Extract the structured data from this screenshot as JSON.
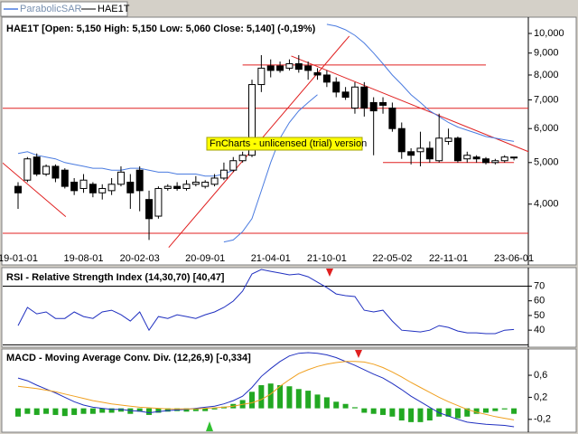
{
  "chart_data": [
    {
      "type": "candlestick",
      "name": "HAE1T",
      "title": "HAE1T [Open: 5,150  High: 5,150  Low: 5,060  Close: 5,140] (-0,19%)",
      "annotation": "FnCharts - unlicensed (trial) version",
      "categories": [
        "19-01-01",
        null,
        null,
        null,
        null,
        null,
        null,
        "19-08-01",
        null,
        null,
        null,
        null,
        null,
        "20-02-03",
        null,
        null,
        null,
        null,
        null,
        null,
        "20-09-01",
        null,
        null,
        null,
        null,
        null,
        null,
        "21-04-01",
        null,
        null,
        null,
        null,
        null,
        "21-10-01",
        null,
        null,
        null,
        null,
        null,
        null,
        "22-05-02",
        null,
        null,
        null,
        null,
        null,
        "22-11-01",
        null,
        null,
        null,
        null,
        null,
        null,
        "23-06-01"
      ],
      "open": [
        4400,
        4550,
        5150,
        4700,
        4900,
        4800,
        4500,
        4350,
        4450,
        4250,
        4300,
        4450,
        4500,
        4800,
        4100,
        3750,
        4350,
        4400,
        4350,
        4450,
        4400,
        4450,
        4600,
        4800,
        5050,
        5200,
        7600,
        8400,
        8400,
        8300,
        8500,
        8400,
        8100,
        8000,
        7700,
        7300,
        6700,
        7500,
        6900,
        6900,
        6700,
        6000,
        5300,
        5300,
        5400,
        5050,
        5600,
        5700,
        5100,
        5150,
        5100,
        5000,
        5050,
        5150
      ],
      "high": [
        4500,
        5150,
        5250,
        4950,
        4950,
        4850,
        4600,
        4700,
        4500,
        4450,
        4600,
        4900,
        4700,
        4900,
        4300,
        4400,
        4450,
        4500,
        4550,
        4650,
        4550,
        4700,
        5000,
        5150,
        5300,
        7800,
        8900,
        8700,
        8600,
        8700,
        8900,
        8600,
        8300,
        8200,
        7900,
        7500,
        7700,
        7700,
        7100,
        7100,
        6900,
        6200,
        5400,
        5900,
        5600,
        6500,
        6000,
        5750,
        5300,
        5200,
        5150,
        5100,
        5200,
        5150
      ],
      "low": [
        3900,
        4500,
        4650,
        4650,
        4500,
        4350,
        4200,
        4250,
        4150,
        4100,
        4200,
        4400,
        3900,
        3850,
        3300,
        3700,
        4300,
        4300,
        4300,
        4400,
        4350,
        4400,
        4550,
        4750,
        5000,
        5150,
        7300,
        7900,
        8100,
        8200,
        8100,
        7800,
        7800,
        7500,
        7100,
        7000,
        6500,
        6400,
        5200,
        6500,
        5900,
        5100,
        4950,
        4900,
        5000,
        5000,
        5500,
        5000,
        5000,
        5000,
        4950,
        4950,
        5000,
        5060
      ],
      "close": [
        4250,
        5100,
        4700,
        4900,
        4600,
        4400,
        4300,
        4550,
        4250,
        4350,
        4450,
        4750,
        4250,
        4300,
        3700,
        4350,
        4400,
        4350,
        4450,
        4500,
        4500,
        4600,
        4800,
        5050,
        5200,
        7600,
        8300,
        8200,
        8200,
        8500,
        8250,
        8200,
        8000,
        7700,
        7300,
        7100,
        7500,
        6700,
        6600,
        6800,
        6000,
        5300,
        5200,
        5400,
        5100,
        5700,
        5700,
        5050,
        5200,
        5100,
        5000,
        5050,
        5150,
        5140
      ],
      "overlay": {
        "name": "ParabolicSAR",
        "color": "#4a7be0",
        "upper": [
          5250,
          5300,
          5200,
          5150,
          5100,
          5000,
          4950,
          4900,
          4850,
          4850,
          4800,
          4800,
          4850,
          4850,
          4800,
          4750,
          4750,
          4700,
          4700,
          4700,
          4650,
          4650,
          4700,
          4800,
          null,
          null,
          null,
          null,
          null,
          null,
          null,
          null,
          null,
          10500,
          10400,
          10200,
          9900,
          9500,
          9000,
          8500,
          8000,
          7600,
          7200,
          6900,
          6600,
          6400,
          6200,
          6050,
          5950,
          5850,
          5750,
          5700,
          5650,
          5600
        ],
        "lower": [
          null,
          null,
          null,
          null,
          null,
          null,
          null,
          null,
          null,
          null,
          null,
          null,
          null,
          null,
          null,
          null,
          null,
          null,
          null,
          null,
          null,
          null,
          3265,
          3300,
          3450,
          3700,
          4300,
          5000,
          5700,
          6200,
          6600,
          6900,
          7200,
          null,
          null,
          null,
          null,
          null,
          null,
          null,
          null,
          null,
          null,
          null,
          null,
          null,
          null,
          null,
          null,
          null,
          null,
          null,
          null,
          null
        ]
      },
      "levels": [
        {
          "price": 8440,
          "start": 24,
          "end": 50
        },
        {
          "price": 6690
        },
        {
          "price": 5000,
          "start": 39,
          "end": 53
        },
        {
          "price": 3420
        }
      ],
      "trendlines": [
        {
          "from": [
            -1.93,
            5050
          ],
          "to": [
            5.1,
            3740
          ]
        },
        {
          "from": [
            16.1,
            3170
          ],
          "to": [
            35.4,
            9860
          ]
        },
        {
          "from": [
            29.2,
            8860
          ],
          "to": [
            55.5,
            5200
          ]
        }
      ],
      "line_color": "#e02020",
      "log": true,
      "ylim": [
        2900,
        10860
      ],
      "yticks": [
        {
          "value": 4000,
          "label": "4,000"
        },
        {
          "value": 5000,
          "label": "5,000"
        },
        {
          "value": 6000,
          "label": "6,000"
        },
        {
          "value": 7000,
          "label": "7,000"
        },
        {
          "value": 8000,
          "label": "8,000"
        },
        {
          "value": 9000,
          "label": "9,000"
        },
        {
          "value": 10000,
          "label": "10,000"
        }
      ]
    },
    {
      "type": "line",
      "title": "RSI - Relative Strength Index (14,30,70) [40,47]",
      "series": [
        {
          "color": "#2030c0",
          "values": [
            43.1,
            55.5,
            51.1,
            52.4,
            48.0,
            48.0,
            52.4,
            49.3,
            48.0,
            52.4,
            53.6,
            50.5,
            46.2,
            52.4,
            40.0,
            49.3,
            48.0,
            50.5,
            49.3,
            48.0,
            50.5,
            52.4,
            55.5,
            59.8,
            66.6,
            78.3,
            81.4,
            80.1,
            78.9,
            77.7,
            78.3,
            76.4,
            72.7,
            69.0,
            64.7,
            63.5,
            62.9,
            53.6,
            52.4,
            53.6,
            46.2,
            40.0,
            39.4,
            38.8,
            40.0,
            43.1,
            41.9,
            39.4,
            38.2,
            38.2,
            37.6,
            37.6,
            40.0,
            40.47
          ]
        }
      ],
      "levels": [
        {
          "price": 30
        },
        {
          "price": 70
        }
      ],
      "line_color": "#000000",
      "ylim": [
        29,
        82
      ],
      "yticks": [
        40,
        50,
        60,
        70
      ]
    },
    {
      "type": "macd",
      "title": "MACD - Moving Average Conv. Div. (12,26,9) [-0,334]",
      "series": [
        {
          "kind": "bar",
          "color": "#22a822",
          "values": [
            -0.15,
            -0.1,
            -0.12,
            -0.1,
            -0.12,
            -0.14,
            -0.12,
            -0.1,
            -0.1,
            -0.08,
            -0.08,
            -0.06,
            -0.1,
            -0.06,
            -0.12,
            -0.08,
            -0.06,
            -0.05,
            -0.06,
            -0.05,
            -0.05,
            -0.02,
            0.03,
            0.08,
            0.15,
            0.3,
            0.42,
            0.45,
            0.42,
            0.4,
            0.35,
            0.32,
            0.25,
            0.2,
            0.12,
            0.08,
            0.02,
            -0.08,
            -0.1,
            -0.12,
            -0.15,
            -0.22,
            -0.25,
            -0.25,
            -0.22,
            -0.15,
            -0.15,
            -0.18,
            -0.15,
            -0.1,
            -0.08,
            -0.05,
            -0.02,
            -0.1
          ]
        },
        {
          "kind": "line",
          "color": "#2030c0",
          "values": [
            0.55,
            0.5,
            0.42,
            0.35,
            0.28,
            0.2,
            0.12,
            0.06,
            0.02,
            0.0,
            -0.02,
            -0.02,
            -0.04,
            -0.05,
            -0.08,
            -0.06,
            -0.04,
            -0.03,
            -0.02,
            0.0,
            0.02,
            0.04,
            0.08,
            0.14,
            0.22,
            0.38,
            0.58,
            0.72,
            0.85,
            0.95,
            1.0,
            1.01,
            1.0,
            0.97,
            0.92,
            0.85,
            0.78,
            0.7,
            0.62,
            0.55,
            0.45,
            0.34,
            0.22,
            0.12,
            0.02,
            -0.08,
            -0.14,
            -0.2,
            -0.25,
            -0.27,
            -0.29,
            -0.3,
            -0.31,
            -0.334
          ]
        },
        {
          "kind": "line",
          "color": "#f0a020",
          "values": [
            0.4,
            0.38,
            0.36,
            0.33,
            0.3,
            0.26,
            0.22,
            0.18,
            0.14,
            0.11,
            0.08,
            0.06,
            0.04,
            0.02,
            0.01,
            0,
            -0.01,
            -0.01,
            -0.01,
            -0.01,
            0,
            0.01,
            0.02,
            0.04,
            0.07,
            0.1,
            0.16,
            0.26,
            0.4,
            0.52,
            0.63,
            0.7,
            0.76,
            0.8,
            0.83,
            0.85,
            0.85,
            0.84,
            0.8,
            0.74,
            0.66,
            0.57,
            0.47,
            0.38,
            0.29,
            0.2,
            0.12,
            0.05,
            -0.02,
            -0.07,
            -0.11,
            -0.15,
            -0.18,
            -0.21
          ]
        }
      ],
      "ylim": [
        -0.4,
        1.06
      ],
      "yticks": [
        {
          "value": 0.6,
          "label": "0,6"
        },
        {
          "value": 0.2,
          "label": "0,2"
        },
        {
          "value": -0.2,
          "label": "-0,2"
        }
      ]
    }
  ]
}
